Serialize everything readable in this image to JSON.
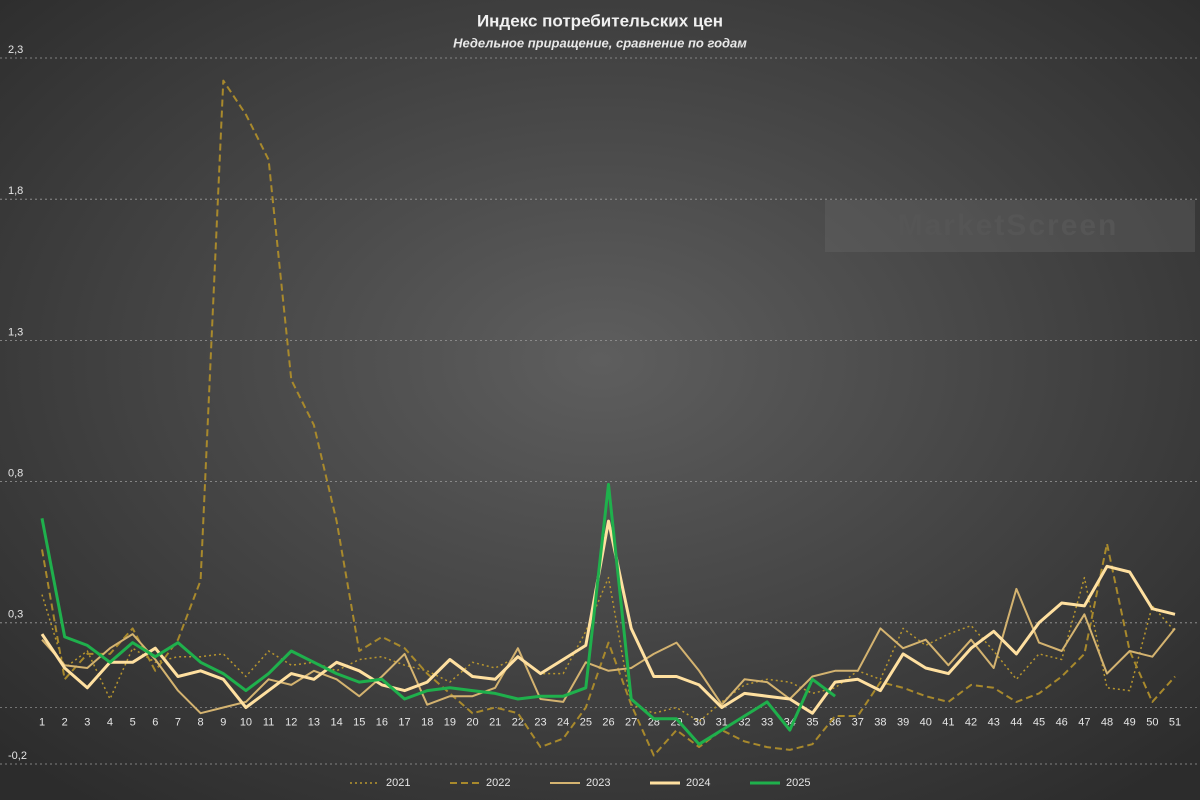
{
  "chart_data": {
    "type": "line",
    "title": "Индекс потребительских цен",
    "subtitle": "Недельное приращение, сравнение по годам",
    "watermark": "MarketScreen",
    "categories": [
      "1",
      "2",
      "3",
      "4",
      "5",
      "6",
      "7",
      "8",
      "9",
      "10",
      "11",
      "12",
      "13",
      "14",
      "15",
      "16",
      "17",
      "18",
      "19",
      "20",
      "21",
      "22",
      "23",
      "24",
      "25",
      "26",
      "27",
      "28",
      "29",
      "30",
      "31",
      "32",
      "33",
      "34",
      "35",
      "36",
      "37",
      "38",
      "39",
      "40",
      "41",
      "42",
      "43",
      "44",
      "45",
      "46",
      "47",
      "48",
      "49",
      "50",
      "51"
    ],
    "ylim": [
      -0.2,
      2.3
    ],
    "yticks": [
      {
        "value": -0.2,
        "label": "-0,2"
      },
      {
        "value": 0.3,
        "label": "0,3"
      },
      {
        "value": 0.8,
        "label": "0,8"
      },
      {
        "value": 1.3,
        "label": "1,3"
      },
      {
        "value": 1.8,
        "label": "1,8"
      },
      {
        "value": 2.3,
        "label": "2,3"
      }
    ],
    "grid": true,
    "legend": "bottom",
    "series": [
      {
        "name": "2021",
        "color": "#b8962e",
        "dash": "dotted",
        "width": 1.5,
        "values": [
          0.4,
          0.14,
          0.2,
          0.03,
          0.21,
          0.16,
          0.18,
          0.18,
          0.19,
          0.11,
          0.2,
          0.15,
          0.16,
          0.13,
          0.17,
          0.18,
          0.15,
          0.13,
          0.09,
          0.16,
          0.14,
          0.18,
          0.12,
          0.12,
          0.27,
          0.46,
          0.01,
          -0.02,
          0.0,
          -0.05,
          0.02,
          0.08,
          0.1,
          0.09,
          0.05,
          0.07,
          0.13,
          0.1,
          0.28,
          0.22,
          0.26,
          0.29,
          0.2,
          0.1,
          0.19,
          0.17,
          0.46,
          0.07,
          0.06,
          0.36,
          0.27
        ]
      },
      {
        "name": "2022",
        "color": "#a8892c",
        "dash": "dashed",
        "width": 2,
        "values": [
          0.56,
          0.1,
          0.19,
          0.19,
          0.28,
          0.13,
          0.24,
          0.45,
          2.22,
          2.1,
          1.94,
          1.16,
          1.0,
          0.66,
          0.2,
          0.25,
          0.21,
          0.12,
          0.05,
          -0.02,
          0.0,
          -0.02,
          -0.14,
          -0.11,
          0.0,
          0.23,
          0.01,
          -0.17,
          -0.08,
          -0.14,
          -0.08,
          -0.12,
          -0.14,
          -0.15,
          -0.13,
          -0.03,
          -0.03,
          0.09,
          0.07,
          0.04,
          0.02,
          0.08,
          0.07,
          0.02,
          0.05,
          0.11,
          0.19,
          0.58,
          0.2,
          0.02,
          0.11
        ]
      },
      {
        "name": "2023",
        "color": "#d4b370",
        "dash": "solid",
        "width": 2,
        "values": [
          0.24,
          0.15,
          0.14,
          0.21,
          0.26,
          0.17,
          0.06,
          -0.02,
          0.0,
          0.02,
          0.1,
          0.08,
          0.13,
          0.1,
          0.04,
          0.11,
          0.19,
          0.01,
          0.04,
          0.04,
          0.07,
          0.21,
          0.03,
          0.02,
          0.16,
          0.13,
          0.14,
          0.19,
          0.23,
          0.13,
          0.01,
          0.1,
          0.09,
          0.03,
          0.11,
          0.13,
          0.13,
          0.28,
          0.21,
          0.24,
          0.15,
          0.24,
          0.14,
          0.42,
          0.23,
          0.2,
          0.33,
          0.12,
          0.2,
          0.18,
          0.28
        ]
      },
      {
        "name": "2024",
        "color": "#ffe0a0",
        "dash": "solid",
        "width": 3,
        "values": [
          0.26,
          0.14,
          0.07,
          0.16,
          0.16,
          0.21,
          0.11,
          0.13,
          0.1,
          0.0,
          0.06,
          0.12,
          0.1,
          0.16,
          0.13,
          0.08,
          0.06,
          0.09,
          0.17,
          0.11,
          0.1,
          0.18,
          0.12,
          0.17,
          0.22,
          0.66,
          0.28,
          0.11,
          0.11,
          0.08,
          0.0,
          0.05,
          0.04,
          0.03,
          -0.02,
          0.09,
          0.1,
          0.06,
          0.19,
          0.14,
          0.12,
          0.21,
          0.27,
          0.19,
          0.3,
          0.37,
          0.36,
          0.5,
          0.48,
          0.35,
          0.33
        ]
      },
      {
        "name": "2025",
        "color": "#1fb04c",
        "dash": "solid",
        "width": 3,
        "values": [
          0.67,
          0.25,
          0.22,
          0.16,
          0.23,
          0.18,
          0.23,
          0.16,
          0.12,
          0.06,
          0.12,
          0.2,
          0.16,
          0.12,
          0.09,
          0.1,
          0.03,
          0.06,
          0.07,
          0.06,
          0.05,
          0.03,
          0.04,
          0.04,
          0.07,
          0.79,
          0.03,
          -0.04,
          -0.04,
          -0.13,
          -0.08,
          -0.03,
          0.02,
          -0.08,
          0.1,
          0.04,
          null,
          null,
          null,
          null,
          null,
          null,
          null,
          null,
          null,
          null,
          null,
          null,
          null,
          null,
          null
        ]
      }
    ]
  }
}
